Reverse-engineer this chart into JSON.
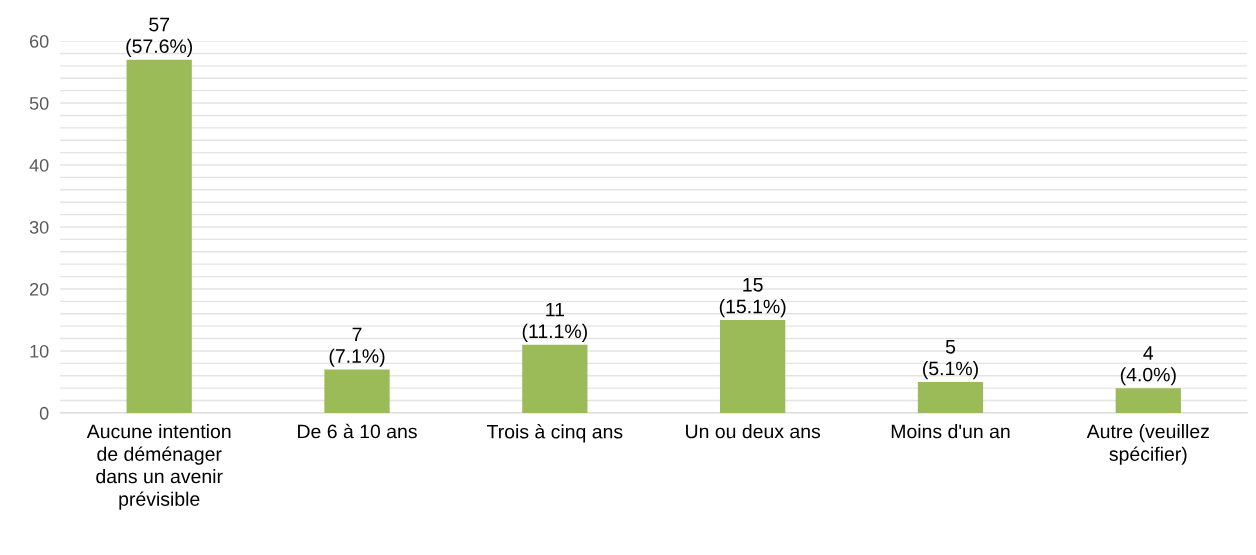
{
  "chart_data": {
    "type": "bar",
    "categories": [
      "Aucune intention\nde déménager\ndans un avenir\nprévisible",
      "De 6 à 10 ans",
      "Trois à cinq ans",
      "Un ou deux ans",
      "Moins d'un an",
      "Autre (veuillez\nspécifier)"
    ],
    "values": [
      57,
      7,
      11,
      15,
      5,
      4
    ],
    "value_labels": [
      "57\n(57.6%)",
      "7\n(7.1%)",
      "11\n(11.1%)",
      "15\n(15.1%)",
      "5\n(5.1%)",
      "4\n(4.0%)"
    ],
    "color": "#9bbb59",
    "ylim": [
      0,
      60
    ],
    "yticks": [
      0,
      {
        "value": 2,
        "label": null
      },
      {
        "value": 4,
        "label": null
      },
      {
        "value": 6,
        "label": null
      },
      {
        "value": 8,
        "label": null
      },
      10,
      {
        "value": 12,
        "label": null
      },
      {
        "value": 14,
        "label": null
      },
      {
        "value": 16,
        "label": null
      },
      {
        "value": 18,
        "label": null
      },
      20,
      {
        "value": 22,
        "label": null
      },
      {
        "value": 24,
        "label": null
      },
      {
        "value": 26,
        "label": null
      },
      {
        "value": 28,
        "label": null
      },
      30,
      {
        "value": 32,
        "label": null
      },
      {
        "value": 34,
        "label": null
      },
      {
        "value": 36,
        "label": null
      },
      {
        "value": 38,
        "label": null
      },
      40,
      {
        "value": 42,
        "label": null
      },
      {
        "value": 44,
        "label": null
      },
      {
        "value": 46,
        "label": null
      },
      {
        "value": 48,
        "label": null
      },
      50,
      {
        "value": 52,
        "label": null
      },
      {
        "value": 54,
        "label": null
      },
      {
        "value": 56,
        "label": null
      },
      {
        "value": 58,
        "label": null
      },
      60
    ],
    "grid": "y"
  }
}
